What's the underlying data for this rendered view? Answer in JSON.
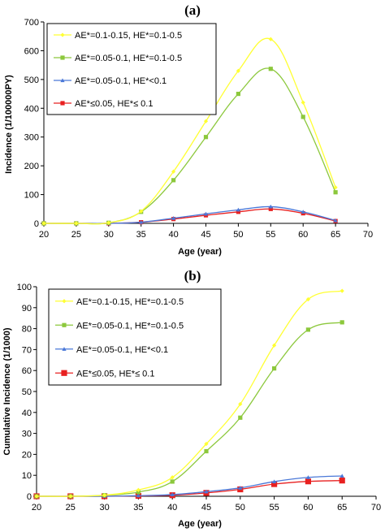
{
  "chart_data": [
    {
      "type": "line",
      "title": "(a)",
      "xlabel": "Age (year)",
      "ylabel": "Incidence (1/100000PY)",
      "xlim": [
        20,
        70
      ],
      "ylim": [
        0,
        700
      ],
      "xticks": [
        20,
        25,
        30,
        35,
        40,
        45,
        50,
        55,
        60,
        65,
        70
      ],
      "yticks": [
        0,
        100,
        200,
        300,
        400,
        500,
        600,
        700
      ],
      "grid": false,
      "legend_position": "top-left",
      "series": [
        {
          "name": "AE*=0.1-0.15, HE*=0.1-0.5",
          "color": "#ffff33",
          "marker": "diamond",
          "x": [
            20,
            25,
            30,
            35,
            40,
            45,
            50,
            55,
            60,
            65
          ],
          "y": [
            0,
            0,
            2,
            42,
            180,
            355,
            530,
            640,
            420,
            125
          ]
        },
        {
          "name": "AE*=0.05-0.1, HE*=0.1-0.5",
          "color": "#8cc83c",
          "marker": "square",
          "x": [
            20,
            25,
            30,
            35,
            40,
            45,
            50,
            55,
            60,
            65
          ],
          "y": [
            0,
            0,
            2,
            40,
            150,
            300,
            450,
            537,
            370,
            108
          ]
        },
        {
          "name": "AE*=0.05-0.1, HE*<0.1",
          "color": "#4a78d8",
          "marker": "triangle",
          "x": [
            20,
            25,
            30,
            35,
            40,
            45,
            50,
            55,
            60,
            65
          ],
          "y": [
            0,
            0,
            0,
            4,
            18,
            33,
            47,
            58,
            40,
            10
          ]
        },
        {
          "name": "AE*≤0.05, HE*≤ 0.1",
          "color": "#e82020",
          "marker": "square",
          "x": [
            20,
            25,
            30,
            35,
            40,
            45,
            50,
            55,
            60,
            65
          ],
          "y": [
            0,
            0,
            0,
            4,
            15,
            28,
            40,
            50,
            35,
            8
          ]
        }
      ]
    },
    {
      "type": "line",
      "title": "(b)",
      "xlabel": "Age (year)",
      "ylabel": "Cumulative Incidence (1/1000)",
      "xlim": [
        20,
        70
      ],
      "ylim": [
        0,
        100
      ],
      "xticks": [
        20,
        25,
        30,
        35,
        40,
        45,
        50,
        55,
        60,
        65,
        70
      ],
      "yticks": [
        0,
        10,
        20,
        30,
        40,
        50,
        60,
        70,
        80,
        90,
        100
      ],
      "grid": false,
      "legend_position": "top-left",
      "series": [
        {
          "name": "AE*=0.1-0.15, HE*=0.1-0.5",
          "color": "#ffff33",
          "marker": "diamond",
          "x": [
            20,
            25,
            30,
            35,
            40,
            45,
            50,
            55,
            60,
            65
          ],
          "y": [
            0,
            0,
            0.5,
            3,
            9,
            25,
            44,
            72,
            94,
            98
          ]
        },
        {
          "name": "AE*=0.05-0.1, HE*=0.1-0.5",
          "color": "#8cc83c",
          "marker": "square",
          "x": [
            20,
            25,
            30,
            35,
            40,
            45,
            50,
            55,
            60,
            65
          ],
          "y": [
            0,
            0,
            0.5,
            2,
            7,
            21.5,
            37.5,
            61,
            79.5,
            83
          ]
        },
        {
          "name": "AE*=0.05-0.1, HE*<0.1",
          "color": "#4a78d8",
          "marker": "triangle",
          "x": [
            20,
            25,
            30,
            35,
            40,
            45,
            50,
            55,
            60,
            65
          ],
          "y": [
            0,
            0,
            0,
            0.3,
            0.8,
            2.2,
            4,
            7,
            9,
            9.7
          ]
        },
        {
          "name": "AE*≤0.05, HE*≤ 0.1",
          "color": "#e82020",
          "marker": "square",
          "x": [
            20,
            25,
            30,
            35,
            40,
            45,
            50,
            55,
            60,
            65
          ],
          "y": [
            0,
            0,
            0,
            0.2,
            0.5,
            1.6,
            3.3,
            5.8,
            7.1,
            7.5
          ]
        }
      ]
    }
  ]
}
